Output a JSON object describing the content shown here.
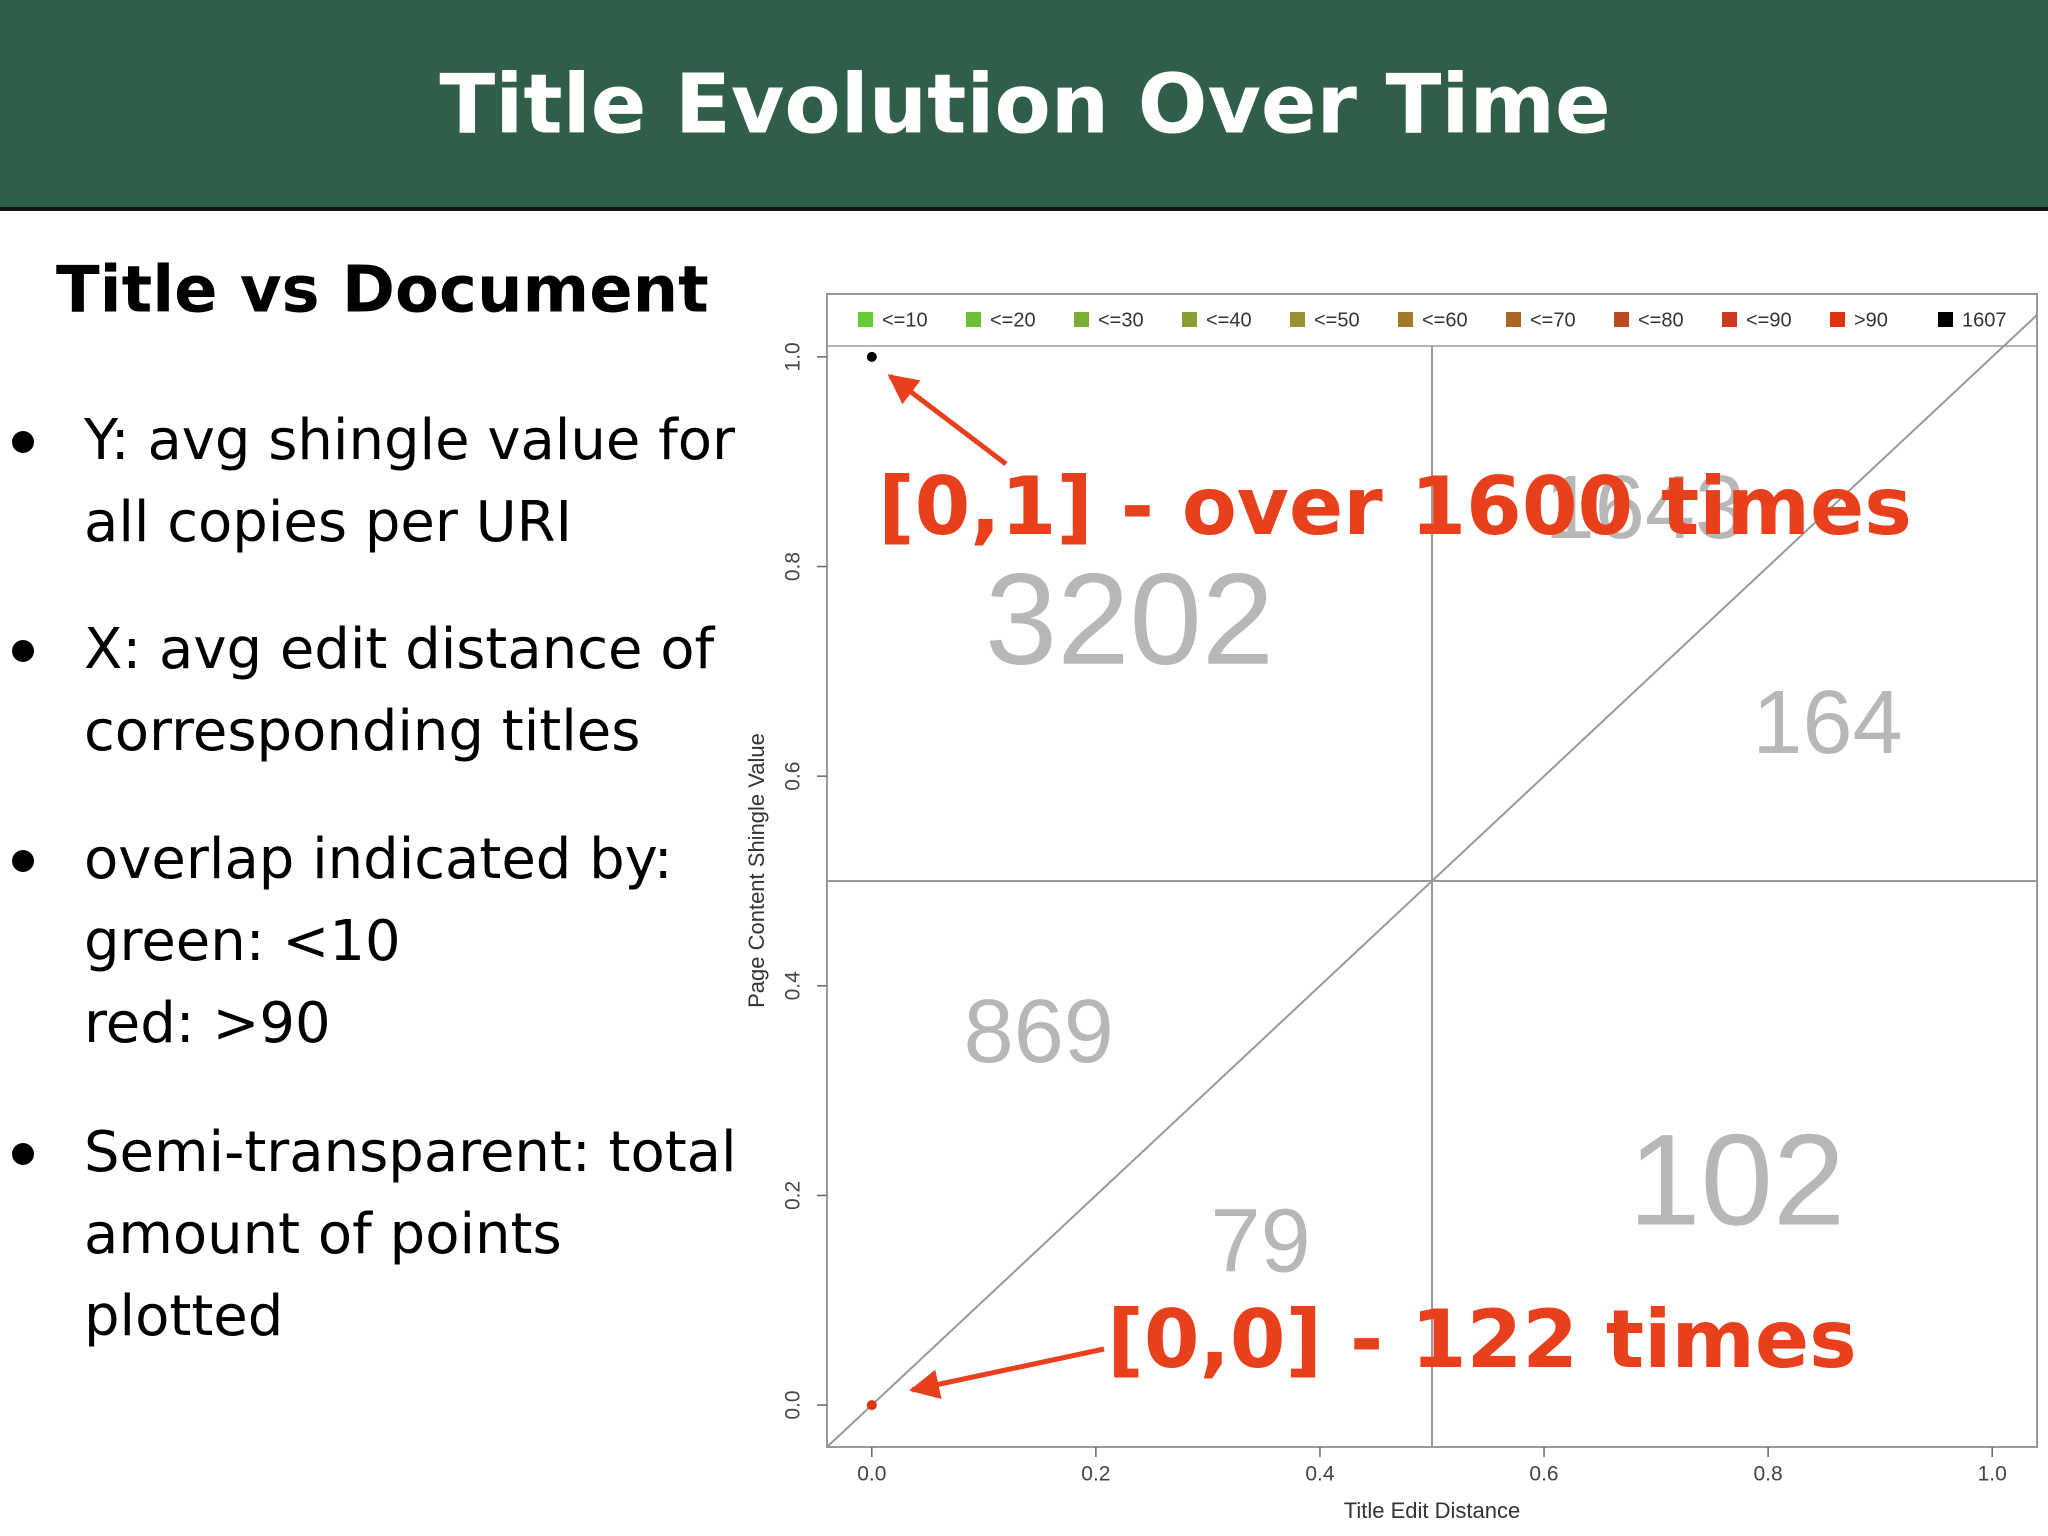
{
  "header": {
    "title": "Title Evolution Over Time"
  },
  "left": {
    "subtitle": "Title vs Document",
    "bullets": [
      {
        "lines": [
          "Y: avg shingle value for",
          "all copies per URI"
        ]
      },
      {
        "lines": [
          "X: avg edit distance of",
          "corresponding titles"
        ]
      },
      {
        "lines": [
          "overlap indicated by:",
          "green: <10",
          "red: >90"
        ]
      },
      {
        "lines": [
          "Semi-transparent: total",
          "amount of points",
          "plotted"
        ]
      }
    ]
  },
  "chart_data": {
    "type": "scatter",
    "x_label": "Title Edit Distance",
    "y_label": "Page Content Shingle Value",
    "xlim": [
      -0.04,
      1.04
    ],
    "ylim": [
      -0.04,
      1.06
    ],
    "xticks": [
      {
        "value": 0,
        "label": "0.0"
      },
      {
        "value": 0.2,
        "label": "0.2"
      },
      {
        "value": 0.4,
        "label": "0.4"
      },
      {
        "value": 0.6,
        "label": "0.6"
      },
      {
        "value": 0.8,
        "label": "0.8"
      },
      {
        "value": 1,
        "label": "1.0"
      }
    ],
    "yticks": [
      {
        "value": 0,
        "label": "0.0"
      },
      {
        "value": 0.2,
        "label": "0.2"
      },
      {
        "value": 0.4,
        "label": "0.4"
      },
      {
        "value": 0.6,
        "label": "0.6"
      },
      {
        "value": 0.8,
        "label": "0.8"
      },
      {
        "value": 1,
        "label": "1.0"
      }
    ],
    "reference_lines": {
      "x": 0.5,
      "y": 0.5
    },
    "series": [
      {
        "name": "<=10",
        "color": "#66cc33",
        "x": [],
        "y": []
      },
      {
        "name": "<=20",
        "color": "#6cbf33",
        "x": [],
        "y": []
      },
      {
        "name": "<=30",
        "color": "#77b033",
        "x": [],
        "y": []
      },
      {
        "name": "<=40",
        "color": "#88a033",
        "x": [],
        "y": []
      },
      {
        "name": "<=50",
        "color": "#999233",
        "x": [],
        "y": []
      },
      {
        "name": "<=60",
        "color": "#a07a2a",
        "x": [],
        "y": []
      },
      {
        "name": "<=70",
        "color": "#aa6622",
        "x": [],
        "y": []
      },
      {
        "name": "<=80",
        "color": "#bb4a22",
        "x": [],
        "y": []
      },
      {
        "name": "<=90",
        "color": "#cc3a22",
        "x": [],
        "y": []
      },
      {
        "name": ">90",
        "color": "#dd3311",
        "x": [
          0
        ],
        "y": [
          0
        ]
      },
      {
        "name": "1607",
        "color": "#000000",
        "x": [
          0
        ],
        "y": [
          1
        ]
      }
    ],
    "quadrant_counts": [
      3202,
      1643,
      164,
      869,
      79,
      102
    ],
    "annotations": [
      "[0,1] - over 1600 times",
      "[0,0] - 122 times"
    ]
  }
}
